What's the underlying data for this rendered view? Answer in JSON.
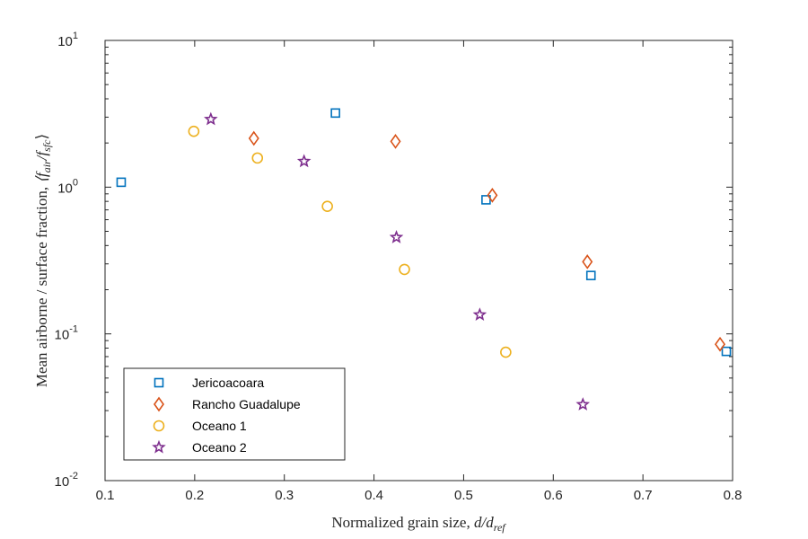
{
  "chart_data": {
    "type": "scatter",
    "xlabel_main": "Normalized grain size, ",
    "xlabel_math": "d/d",
    "xlabel_sub": "ref",
    "ylabel_main": "Mean airborne / surface fraction, ",
    "ylabel_math_pre": "⟨f",
    "ylabel_sub1": "air",
    "ylabel_mid": "/f",
    "ylabel_sub2": "sfc",
    "ylabel_math_post": "⟩",
    "xlim": [
      0.1,
      0.8
    ],
    "ylim": [
      0.01,
      10
    ],
    "yscale": "log",
    "grid": false,
    "legend_position": "bottom-left",
    "x_ticks": [
      "0.1",
      "0.2",
      "0.3",
      "0.4",
      "0.5",
      "0.6",
      "0.7",
      "0.8"
    ],
    "y_ticks": [
      {
        "base": "10",
        "exp": "-2"
      },
      {
        "base": "10",
        "exp": "-1"
      },
      {
        "base": "10",
        "exp": "0"
      },
      {
        "base": "10",
        "exp": "1"
      }
    ],
    "series": [
      {
        "name": "Jericoacoara",
        "marker": "square",
        "color": "#0072BD",
        "points": [
          [
            0.118,
            1.08
          ],
          [
            0.357,
            3.2
          ],
          [
            0.525,
            0.82
          ],
          [
            0.642,
            0.25
          ],
          [
            0.793,
            0.076
          ]
        ]
      },
      {
        "name": "Rancho Guadalupe",
        "marker": "diamond",
        "color": "#D95319",
        "points": [
          [
            0.266,
            2.15
          ],
          [
            0.424,
            2.05
          ],
          [
            0.532,
            0.88
          ],
          [
            0.638,
            0.31
          ],
          [
            0.786,
            0.085
          ]
        ]
      },
      {
        "name": "Oceano 1",
        "marker": "circle",
        "color": "#EDB120",
        "points": [
          [
            0.199,
            2.4
          ],
          [
            0.27,
            1.58
          ],
          [
            0.348,
            0.74
          ],
          [
            0.434,
            0.275
          ],
          [
            0.547,
            0.075
          ]
        ]
      },
      {
        "name": "Oceano 2",
        "marker": "star",
        "color": "#7E2F8E",
        "points": [
          [
            0.218,
            2.9
          ],
          [
            0.322,
            1.5
          ],
          [
            0.425,
            0.455
          ],
          [
            0.518,
            0.135
          ],
          [
            0.633,
            0.033
          ]
        ]
      }
    ]
  }
}
